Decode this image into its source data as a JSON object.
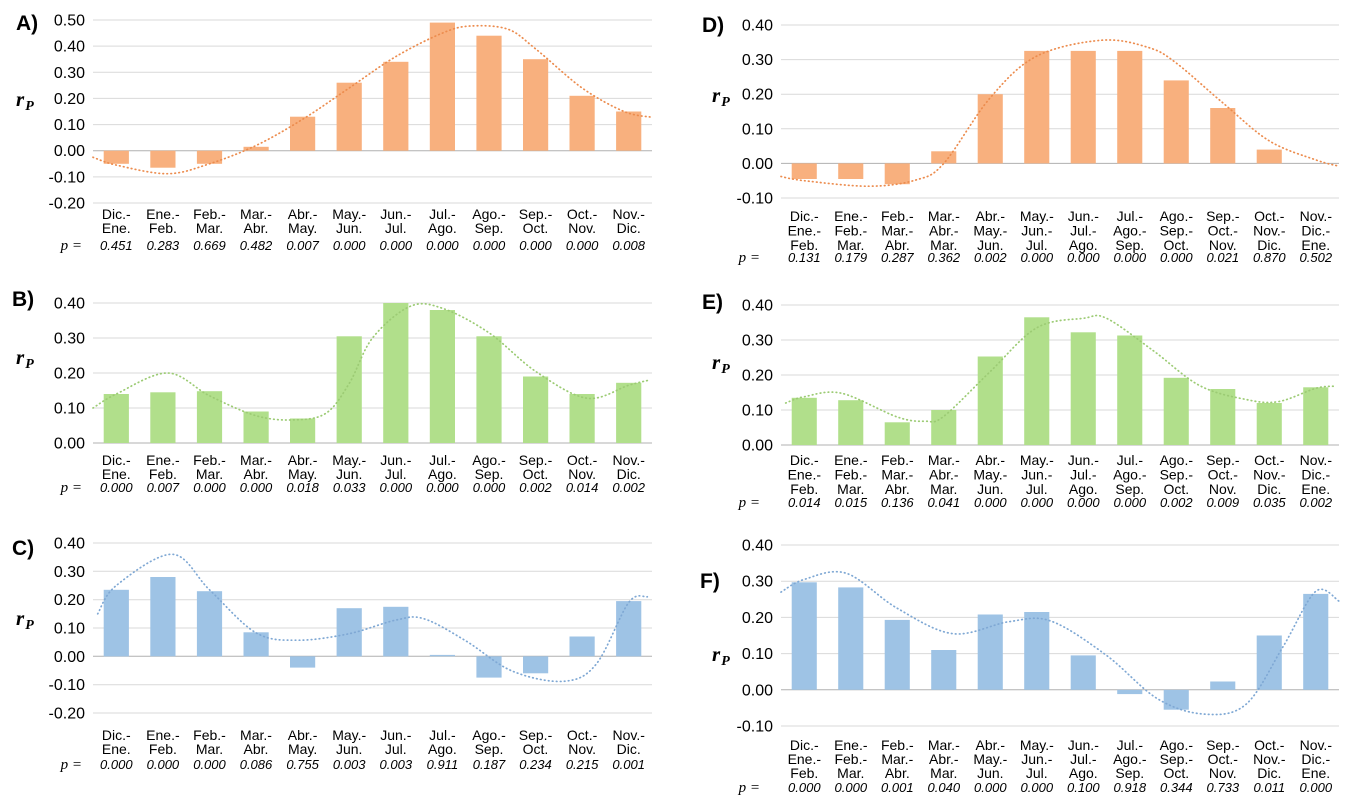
{
  "chart_data": [
    {
      "id": "A",
      "type": "bar",
      "panel_label": "A)",
      "ylabel_base": "r",
      "ylabel_sub": "P",
      "p_prefix": "p =",
      "bar_color": "#F8B07E",
      "trend_color": "#EC8C4E",
      "grid": true,
      "legend": null,
      "ylim": [
        -0.2,
        0.5
      ],
      "yticks": [
        "0.50",
        "0.40",
        "0.30",
        "0.20",
        "0.10",
        "0.00",
        "-0.10",
        "-0.20"
      ],
      "categories": [
        "Dic.-\nEne.",
        "Ene.-\nFeb.",
        "Feb.-\nMar.",
        "Mar.-\nAbr.",
        "Abr.-\nMay.",
        "May.-\nJun.",
        "Jun.-\nJul.",
        "Jul.-\nAgo.",
        "Ago.-\nSep.",
        "Sep.-\nOct.",
        "Oct.-\nNov.",
        "Nov.-\nDic."
      ],
      "values": [
        -0.05,
        -0.065,
        -0.05,
        0.015,
        0.13,
        0.26,
        0.34,
        0.49,
        0.44,
        0.35,
        0.21,
        0.15
      ],
      "p_values": [
        "0.451",
        "0.283",
        "0.669",
        "0.482",
        "0.007",
        "0.000",
        "0.000",
        "0.000",
        "0.000",
        "0.000",
        "0.000",
        "0.008"
      ],
      "trend_curve": [
        [
          -0.5,
          -0.025
        ],
        [
          0,
          -0.055
        ],
        [
          1.1,
          -0.088
        ],
        [
          2,
          -0.05
        ],
        [
          3,
          0.02
        ],
        [
          4,
          0.12
        ],
        [
          5,
          0.24
        ],
        [
          6,
          0.36
        ],
        [
          7,
          0.45
        ],
        [
          7.6,
          0.477
        ],
        [
          8.4,
          0.465
        ],
        [
          9,
          0.39
        ],
        [
          10,
          0.24
        ],
        [
          10.9,
          0.15
        ],
        [
          11.5,
          0.128
        ]
      ]
    },
    {
      "id": "B",
      "type": "bar",
      "panel_label": "B)",
      "ylabel_base": "r",
      "ylabel_sub": "P",
      "p_prefix": "p =",
      "bar_color": "#B1DF8B",
      "trend_color": "#9CCB74",
      "grid": true,
      "legend": null,
      "ylim": [
        0.0,
        0.4
      ],
      "yticks": [
        "0.40",
        "0.30",
        "0.20",
        "0.10",
        "0.00"
      ],
      "categories": [
        "Dic.-\nEne.",
        "Ene.-\nFeb.",
        "Feb.-\nMar.",
        "Mar.-\nAbr.",
        "Abr.-\nMay.",
        "May.-\nJun.",
        "Jun.-\nJul.",
        "Jul.-\nAgo.",
        "Ago.-\nSep.",
        "Sep.-\nOct.",
        "Oct.-\nNov.",
        "Nov.-\nDic."
      ],
      "values": [
        0.14,
        0.145,
        0.148,
        0.09,
        0.07,
        0.305,
        0.4,
        0.38,
        0.305,
        0.19,
        0.14,
        0.172
      ],
      "p_values": [
        "0.000",
        "0.007",
        "0.000",
        "0.000",
        "0.018",
        "0.033",
        "0.000",
        "0.000",
        "0.000",
        "0.002",
        "0.014",
        "0.002"
      ],
      "trend_curve": [
        [
          -0.5,
          0.1
        ],
        [
          0,
          0.14
        ],
        [
          1.1,
          0.2
        ],
        [
          2,
          0.135
        ],
        [
          3,
          0.078
        ],
        [
          3.8,
          0.066
        ],
        [
          4.5,
          0.085
        ],
        [
          5,
          0.17
        ],
        [
          5.5,
          0.3
        ],
        [
          6.3,
          0.39
        ],
        [
          7,
          0.385
        ],
        [
          8,
          0.315
        ],
        [
          9,
          0.205
        ],
        [
          10.1,
          0.128
        ],
        [
          11,
          0.165
        ],
        [
          11.45,
          0.18
        ]
      ]
    },
    {
      "id": "C",
      "type": "bar",
      "panel_label": "C)",
      "ylabel_base": "r",
      "ylabel_sub": "P",
      "p_prefix": "p =",
      "bar_color": "#9EC3E5",
      "trend_color": "#7FA8D4",
      "grid": true,
      "legend": null,
      "ylim": [
        -0.2,
        0.4
      ],
      "yticks": [
        "0.40",
        "0.30",
        "0.20",
        "0.10",
        "0.00",
        "-0.10",
        "-0.20"
      ],
      "categories": [
        "Dic.-\nEne.",
        "Ene.-\nFeb.",
        "Feb.-\nMar.",
        "Mar.-\nAbr.",
        "Abr.-\nMay.",
        "May.-\nJun.",
        "Jun.-\nJul.",
        "Jul.-\nAgo.",
        "Ago.-\nSep.",
        "Sep.-\nOct.",
        "Oct.-\nNov.",
        "Nov.-\nDic."
      ],
      "values": [
        0.235,
        0.28,
        0.23,
        0.085,
        -0.04,
        0.17,
        0.175,
        0.005,
        -0.075,
        -0.06,
        0.07,
        0.195
      ],
      "p_values": [
        "0.000",
        "0.000",
        "0.000",
        "0.086",
        "0.755",
        "0.003",
        "0.003",
        "0.911",
        "0.187",
        "0.234",
        "0.215",
        "0.001"
      ],
      "trend_curve": [
        [
          -0.4,
          0.15
        ],
        [
          0,
          0.25
        ],
        [
          1.2,
          0.36
        ],
        [
          2,
          0.235
        ],
        [
          3,
          0.083
        ],
        [
          3.9,
          0.057
        ],
        [
          5,
          0.08
        ],
        [
          6,
          0.128
        ],
        [
          6.6,
          0.133
        ],
        [
          7.5,
          0.055
        ],
        [
          8.5,
          -0.052
        ],
        [
          9.6,
          -0.088
        ],
        [
          10.3,
          -0.028
        ],
        [
          11,
          0.19
        ],
        [
          11.4,
          0.21
        ]
      ]
    },
    {
      "id": "D",
      "type": "bar",
      "panel_label": "D)",
      "ylabel_base": "r",
      "ylabel_sub": "P",
      "p_prefix": "p =",
      "bar_color": "#F8B07E",
      "trend_color": "#EC8C4E",
      "grid": true,
      "legend": null,
      "ylim": [
        -0.1,
        0.4
      ],
      "yticks": [
        "0.40",
        "0.30",
        "0.20",
        "0.10",
        "0.00",
        "-0.10"
      ],
      "categories": [
        "Dic.-\nEne.-\nFeb.",
        "Ene.-\nFeb.-\nMar.",
        "Feb.-\nMar.-\nAbr.",
        "Mar.-\nAbr.-\nMar.",
        "Abr.-\nMay.-\nJun.",
        "May.-\nJun.-\nJul.",
        "Jun.-\nJul.-\nAgo.",
        "Jul.-\nAgo.-\nSep.",
        "Ago.-\nSep.-\nOct.",
        "Sep.-\nOct.-\nNov.",
        "Oct.-\nNov.-\nDic.",
        "Nov.-\nDic.-\nEne."
      ],
      "values": [
        -0.045,
        -0.045,
        -0.06,
        0.035,
        0.2,
        0.325,
        0.325,
        0.325,
        0.24,
        0.16,
        0.04,
        0.0
      ],
      "p_values": [
        "0.131",
        "0.179",
        "0.287",
        "0.362",
        "0.002",
        "0.000",
        "0.000",
        "0.000",
        "0.000",
        "0.021",
        "0.870",
        "0.502"
      ],
      "trend_curve": [
        [
          -0.5,
          -0.038
        ],
        [
          0,
          -0.05
        ],
        [
          1.4,
          -0.066
        ],
        [
          2.4,
          -0.048
        ],
        [
          3,
          0.0
        ],
        [
          4,
          0.19
        ],
        [
          5,
          0.31
        ],
        [
          6.4,
          0.356
        ],
        [
          7.4,
          0.335
        ],
        [
          8,
          0.29
        ],
        [
          9,
          0.175
        ],
        [
          10,
          0.065
        ],
        [
          11,
          0.01
        ],
        [
          11.5,
          -0.008
        ]
      ]
    },
    {
      "id": "E",
      "type": "bar",
      "panel_label": "E)",
      "ylabel_base": "r",
      "ylabel_sub": "P",
      "p_prefix": "p =",
      "bar_color": "#B1DF8B",
      "trend_color": "#9CCB74",
      "grid": true,
      "legend": null,
      "ylim": [
        0.0,
        0.4
      ],
      "yticks": [
        "0.40",
        "0.30",
        "0.20",
        "0.10",
        "0.00"
      ],
      "categories": [
        "Dic.-\nEne.-\nFeb.",
        "Ene.-\nFeb.-\nMar.",
        "Feb.-\nMar.-\nAbr.",
        "Mar.-\nAbr.-\nMar.",
        "Abr.-\nMay.-\nJun.",
        "May.-\nJun.-\nJul.",
        "Jun.-\nJul.-\nAgo.",
        "Jul.-\nAgo.-\nSep.",
        "Ago.-\nSep.-\nOct.",
        "Sep.-\nOct.-\nNov.",
        "Oct.-\nNov.-\nDic.",
        "Nov.-\nDic.-\nEne."
      ],
      "values": [
        0.135,
        0.128,
        0.065,
        0.1,
        0.253,
        0.365,
        0.322,
        0.313,
        0.192,
        0.16,
        0.12,
        0.165
      ],
      "p_values": [
        "0.014",
        "0.015",
        "0.136",
        "0.041",
        "0.000",
        "0.000",
        "0.000",
        "0.000",
        "0.002",
        "0.009",
        "0.035",
        "0.002"
      ],
      "trend_curve": [
        [
          -0.4,
          0.12
        ],
        [
          0,
          0.138
        ],
        [
          0.8,
          0.148
        ],
        [
          2,
          0.08
        ],
        [
          2.6,
          0.068
        ],
        [
          3,
          0.082
        ],
        [
          4,
          0.21
        ],
        [
          5,
          0.335
        ],
        [
          6,
          0.362
        ],
        [
          6.5,
          0.362
        ],
        [
          7.5,
          0.27
        ],
        [
          8.5,
          0.17
        ],
        [
          9.5,
          0.13
        ],
        [
          10.2,
          0.124
        ],
        [
          11,
          0.162
        ],
        [
          11.4,
          0.168
        ]
      ]
    },
    {
      "id": "F",
      "type": "bar",
      "panel_label": "F)",
      "ylabel_base": "r",
      "ylabel_sub": "P",
      "p_prefix": "p =",
      "bar_color": "#9EC3E5",
      "trend_color": "#7FA8D4",
      "grid": true,
      "legend": null,
      "ylim": [
        -0.1,
        0.4
      ],
      "yticks": [
        "0.40",
        "0.30",
        "0.20",
        "0.10",
        "0.00",
        "-0.10"
      ],
      "categories": [
        "Dic.-\nEne.-\nFeb.",
        "Ene.-\nFeb.-\nMar.",
        "Feb.-\nMar.-\nAbr.",
        "Mar.-\nAbr.-\nMar.",
        "Abr.-\nMay.-\nJun.",
        "May.-\nJun.-\nJul.",
        "Jun.-\nJul.-\nAgo.",
        "Jul.-\nAgo.-\nSep.",
        "Ago.-\nSep.-\nOct.",
        "Sep.-\nOct.-\nNov.",
        "Oct.-\nNov.-\nDic.",
        "Nov.-\nDic.-\nEne."
      ],
      "values": [
        0.297,
        0.283,
        0.193,
        0.11,
        0.208,
        0.215,
        0.095,
        -0.012,
        -0.055,
        0.023,
        0.15,
        0.265
      ],
      "p_values": [
        "0.000",
        "0.000",
        "0.001",
        "0.040",
        "0.000",
        "0.000",
        "0.100",
        "0.918",
        "0.344",
        "0.733",
        "0.011",
        "0.000"
      ],
      "trend_curve": [
        [
          -0.5,
          0.27
        ],
        [
          0,
          0.305
        ],
        [
          0.9,
          0.322
        ],
        [
          2,
          0.225
        ],
        [
          3.2,
          0.155
        ],
        [
          4.4,
          0.188
        ],
        [
          5.3,
          0.19
        ],
        [
          6.5,
          0.095
        ],
        [
          7.6,
          -0.025
        ],
        [
          8.6,
          -0.067
        ],
        [
          9.5,
          -0.04
        ],
        [
          10.3,
          0.12
        ],
        [
          11,
          0.272
        ],
        [
          11.5,
          0.245
        ]
      ]
    }
  ],
  "style": {
    "grid_color": "#D9D9D9",
    "zero_line_color": "#B0B0B0",
    "text_color": "#000000"
  }
}
